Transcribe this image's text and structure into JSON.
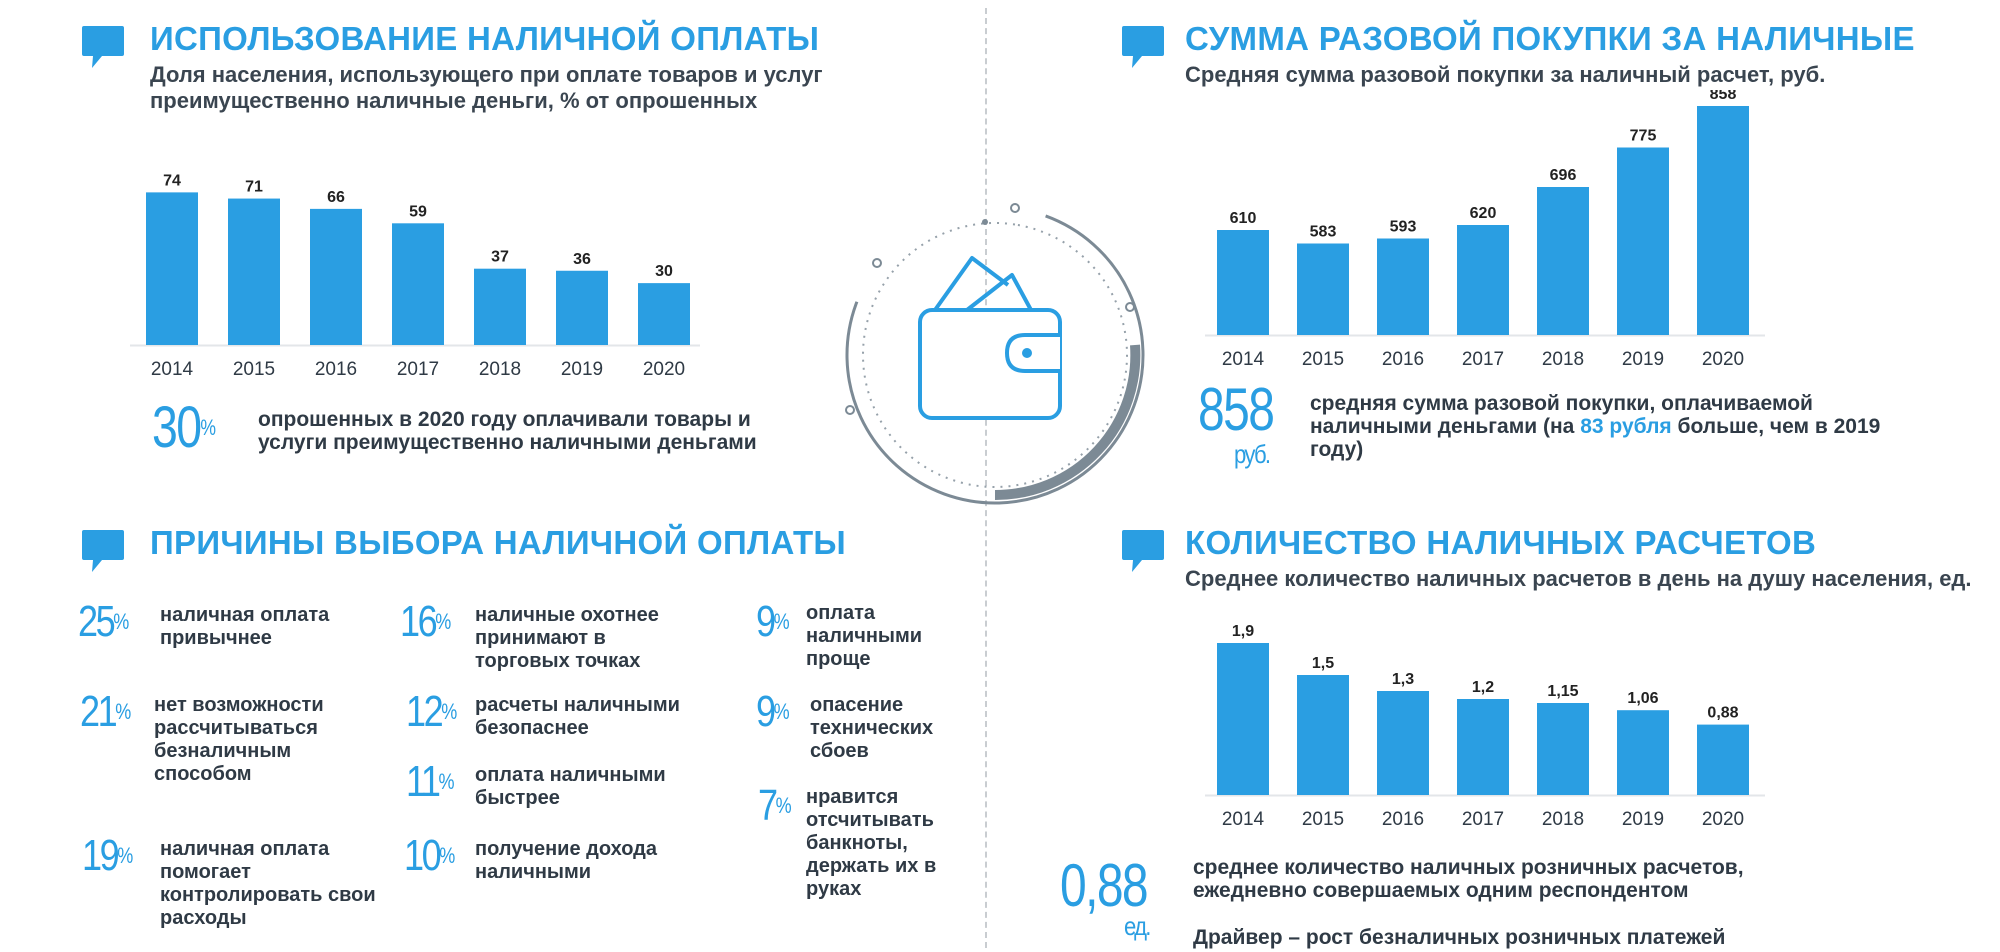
{
  "colors": {
    "accent": "#2a9ee2",
    "bar": "#2a9ee2",
    "text": "#2f3a45",
    "ring": "#7c8a95"
  },
  "sections": {
    "cash_usage": {
      "title": "ИСПОЛЬЗОВАНИЕ НАЛИЧНОЙ ОПЛАТЫ",
      "subtitle": "Доля населения, использующего при оплате товаров и услуг преимущественно наличные деньги, % от опрошенных",
      "highlight_value": "30",
      "highlight_unit": "%",
      "highlight_text": "опрошенных в 2020 году оплачивали товары и услуги преимущественно наличными деньгами"
    },
    "purchase_sum": {
      "title": "СУММА РАЗОВОЙ ПОКУПКИ ЗА НАЛИЧНЫЕ",
      "subtitle": "Средняя сумма разовой покупки за наличный расчет, руб.",
      "highlight_value": "858",
      "highlight_unit": "руб.",
      "highlight_text_1": "средняя сумма разовой покупки, оплачиваемой наличными деньгами (на ",
      "highlight_emph": "83 рубля",
      "highlight_text_2": " больше, чем в 2019 году)"
    },
    "reasons": {
      "title": "ПРИЧИНЫ ВЫБОРА НАЛИЧНОЙ ОПЛАТЫ",
      "items": [
        {
          "value": "25",
          "text": "наличная оплата привычнее"
        },
        {
          "value": "21",
          "text": "нет возможности рассчитываться безналичным способом"
        },
        {
          "value": "19",
          "text": "наличная оплата помогает контролировать свои расходы"
        },
        {
          "value": "16",
          "text": "наличные охотнее принимают в торговых точках"
        },
        {
          "value": "12",
          "text": "расчеты наличными безопаснее"
        },
        {
          "value": "11",
          "text": "оплата наличными быстрее"
        },
        {
          "value": "10",
          "text": "получение дохода наличными"
        },
        {
          "value": "9",
          "text": "оплата наличными проще"
        },
        {
          "value": "9",
          "text": "опасение технических сбоев"
        },
        {
          "value": "7",
          "text": "нравится отсчитывать банкноты, держать их в руках"
        }
      ],
      "pct": "%"
    },
    "cash_count": {
      "title": "КОЛИЧЕСТВО НАЛИЧНЫХ РАСЧЕТОВ",
      "subtitle": "Среднее количество наличных расчетов в день на душу населения, ед.",
      "highlight_value": "0,88",
      "highlight_unit": "ед.",
      "highlight_text": "среднее количество наличных розничных расчетов, ежедневно совершаемых одним респондентом",
      "driver": "Драйвер – рост безналичных розничных платежей"
    }
  },
  "chart_data": [
    {
      "type": "bar",
      "categories": [
        "2014",
        "2015",
        "2016",
        "2017",
        "2018",
        "2019",
        "2020"
      ],
      "values": [
        74,
        71,
        66,
        59,
        37,
        36,
        30
      ],
      "labels": [
        "74",
        "71",
        "66",
        "59",
        "37",
        "36",
        "30"
      ],
      "title": "ИСПОЛЬЗОВАНИЕ НАЛИЧНОЙ ОПЛАТЫ",
      "ylim": [
        0,
        80
      ]
    },
    {
      "type": "bar",
      "categories": [
        "2014",
        "2015",
        "2016",
        "2017",
        "2018",
        "2019",
        "2020"
      ],
      "values": [
        610,
        583,
        593,
        620,
        696,
        775,
        858
      ],
      "labels": [
        "610",
        "583",
        "593",
        "620",
        "696",
        "775",
        "858"
      ],
      "title": "СУММА РАЗОВОЙ ПОКУПКИ ЗА НАЛИЧНЫЕ",
      "ylim": [
        400,
        860
      ]
    },
    {
      "type": "bar",
      "categories": [
        "2014",
        "2015",
        "2016",
        "2017",
        "2018",
        "2019",
        "2020"
      ],
      "values": [
        1.9,
        1.5,
        1.3,
        1.2,
        1.15,
        1.06,
        0.88
      ],
      "labels": [
        "1,9",
        "1,5",
        "1,3",
        "1,2",
        "1,15",
        "1,06",
        "0,88"
      ],
      "title": "КОЛИЧЕСТВО НАЛИЧНЫХ РАСЧЕТОВ",
      "ylim": [
        0,
        2
      ]
    }
  ]
}
